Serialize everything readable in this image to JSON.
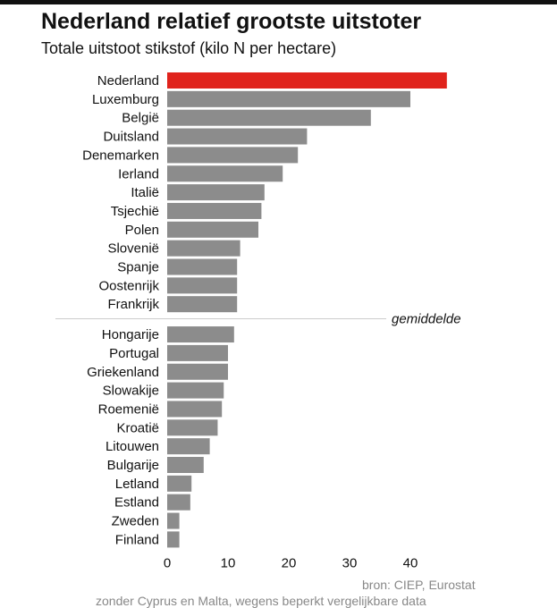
{
  "chart_data": {
    "type": "bar",
    "orientation": "horizontal",
    "title": "Nederland relatief grootste uitstoter",
    "subtitle": "Totale uitstoot stikstof (kilo N per hectare)",
    "categories": [
      "Nederland",
      "Luxemburg",
      "België",
      "Duitsland",
      "Denemarken",
      "Ierland",
      "Italië",
      "Tsjechië",
      "Polen",
      "Slovenië",
      "Spanje",
      "Oostenrijk",
      "Frankrijk",
      "Hongarije",
      "Portugal",
      "Griekenland",
      "Slowakije",
      "Roemenië",
      "Kroatië",
      "Litouwen",
      "Bulgarije",
      "Letland",
      "Estland",
      "Zweden",
      "Finland"
    ],
    "values": [
      46,
      40,
      33.5,
      23,
      21.5,
      19,
      16,
      15.5,
      15,
      12,
      11.5,
      11.5,
      11.5,
      11,
      10,
      10,
      9.3,
      9,
      8.3,
      7,
      6,
      4,
      3.8,
      2,
      2
    ],
    "highlight": "Nederland",
    "colors": {
      "highlight": "#e0231c",
      "default": "#8c8c8c",
      "divider": "#cccccc"
    },
    "xlim": [
      0,
      48
    ],
    "xticks": [
      0,
      10,
      20,
      30,
      40
    ],
    "average_label": "gemiddelde",
    "average_after": "Frankrijk",
    "grid": false
  },
  "source": "bron: CIEP, Eurostat",
  "footnote": "zonder Cyprus en Malta, wegens beperkt vergelijkbare data"
}
